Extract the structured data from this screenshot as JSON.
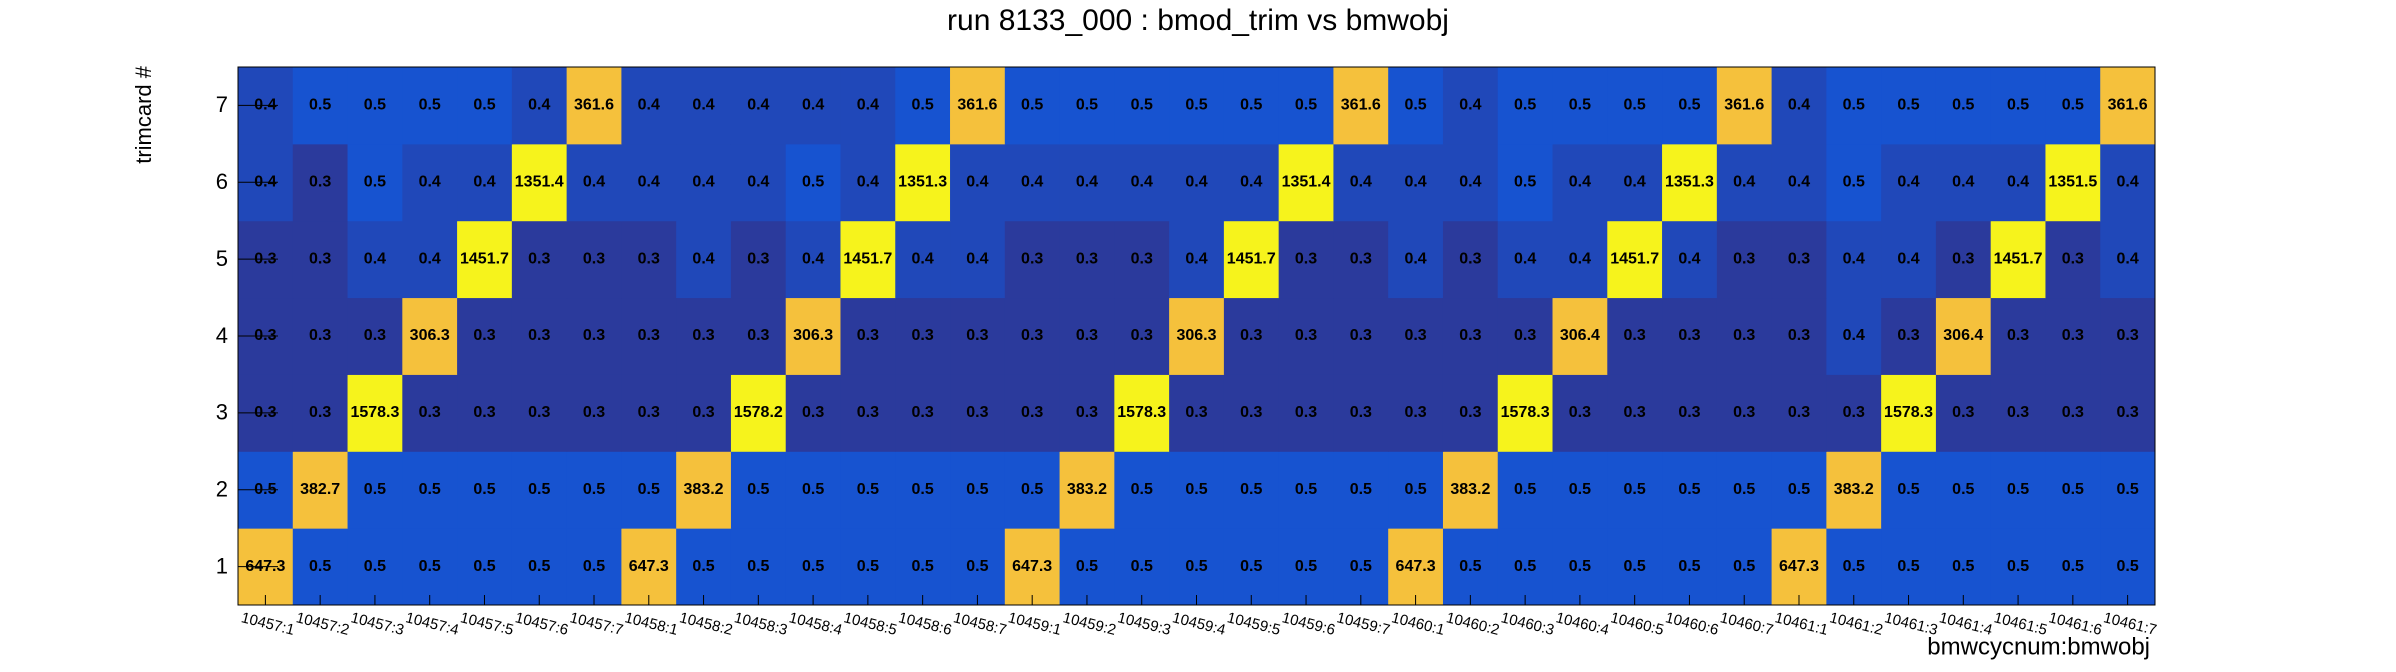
{
  "chart_data": {
    "type": "heatmap",
    "title": "run 8133_000 : bmod_trim vs bmwobj",
    "x_label": "bmwcycnum:bmwobj",
    "y_label": "trimcard #",
    "categories": [
      "10457:1",
      "10457:2",
      "10457:3",
      "10457:4",
      "10457:5",
      "10457:6",
      "10457:7",
      "10458:1",
      "10458:2",
      "10458:3",
      "10458:4",
      "10458:5",
      "10458:6",
      "10458:7",
      "10459:1",
      "10459:2",
      "10459:3",
      "10459:4",
      "10459:5",
      "10459:6",
      "10459:7",
      "10460:1",
      "10460:2",
      "10460:3",
      "10460:4",
      "10460:5",
      "10460:6",
      "10460:7",
      "10461:1",
      "10461:2",
      "10461:3",
      "10461:4",
      "10461:5",
      "10461:6",
      "10461:7"
    ],
    "y": [
      1,
      2,
      3,
      4,
      5,
      6,
      7
    ],
    "ylim": [
      0.5,
      7.5
    ],
    "yticks": [
      1,
      2,
      3,
      4,
      5,
      6,
      7
    ],
    "log_color": true,
    "colors": [
      "#2b3a9c",
      "#1753d0",
      "#f5c13c",
      "#f6f31c"
    ],
    "z": [
      [
        647.3,
        0.5,
        0.5,
        0.5,
        0.5,
        0.5,
        0.5,
        647.3,
        0.5,
        0.5,
        0.5,
        0.5,
        0.5,
        0.5,
        647.3,
        0.5,
        0.5,
        0.5,
        0.5,
        0.5,
        0.5,
        647.3,
        0.5,
        0.5,
        0.5,
        0.5,
        0.5,
        0.5,
        647.3,
        0.5,
        0.5,
        0.5,
        0.5,
        0.5,
        0.5
      ],
      [
        0.5,
        382.7,
        0.5,
        0.5,
        0.5,
        0.5,
        0.5,
        0.5,
        383.2,
        0.5,
        0.5,
        0.5,
        0.5,
        0.5,
        0.5,
        383.2,
        0.5,
        0.5,
        0.5,
        0.5,
        0.5,
        0.5,
        383.2,
        0.5,
        0.5,
        0.5,
        0.5,
        0.5,
        0.5,
        383.2,
        0.5,
        0.5,
        0.5,
        0.5,
        0.5
      ],
      [
        0.3,
        0.3,
        1578.3,
        0.3,
        0.3,
        0.3,
        0.3,
        0.3,
        0.3,
        1578.2,
        0.3,
        0.3,
        0.3,
        0.3,
        0.3,
        0.3,
        1578.3,
        0.3,
        0.3,
        0.3,
        0.3,
        0.3,
        0.3,
        1578.3,
        0.3,
        0.3,
        0.3,
        0.3,
        0.3,
        0.3,
        1578.3,
        0.3,
        0.3,
        0.3,
        0.3
      ],
      [
        0.3,
        0.3,
        0.3,
        306.3,
        0.3,
        0.3,
        0.3,
        0.3,
        0.3,
        0.3,
        306.3,
        0.3,
        0.3,
        0.3,
        0.3,
        0.3,
        0.3,
        306.3,
        0.3,
        0.3,
        0.3,
        0.3,
        0.3,
        0.3,
        306.4,
        0.3,
        0.3,
        0.3,
        0.3,
        0.4,
        0.3,
        306.4,
        0.3,
        0.3,
        0.3
      ],
      [
        0.3,
        0.3,
        0.4,
        0.4,
        1451.7,
        0.3,
        0.3,
        0.3,
        0.4,
        0.3,
        0.4,
        1451.7,
        0.4,
        0.4,
        0.3,
        0.3,
        0.3,
        0.4,
        1451.7,
        0.3,
        0.3,
        0.4,
        0.3,
        0.4,
        0.4,
        1451.7,
        0.4,
        0.3,
        0.3,
        0.4,
        0.4,
        0.3,
        1451.7,
        0.3,
        0.4
      ],
      [
        0.4,
        0.3,
        0.5,
        0.4,
        0.4,
        1351.4,
        0.4,
        0.4,
        0.4,
        0.4,
        0.5,
        0.4,
        1351.3,
        0.4,
        0.4,
        0.4,
        0.4,
        0.4,
        0.4,
        1351.4,
        0.4,
        0.4,
        0.4,
        0.5,
        0.4,
        0.4,
        1351.3,
        0.4,
        0.4,
        0.5,
        0.4,
        0.4,
        0.4,
        1351.5,
        0.4
      ],
      [
        0.4,
        0.5,
        0.5,
        0.5,
        0.5,
        0.4,
        361.6,
        0.4,
        0.4,
        0.4,
        0.4,
        0.4,
        0.5,
        361.6,
        0.5,
        0.5,
        0.5,
        0.5,
        0.5,
        0.5,
        361.6,
        0.5,
        0.4,
        0.5,
        0.5,
        0.5,
        0.5,
        361.6,
        0.4,
        0.5,
        0.5,
        0.5,
        0.5,
        0.5,
        361.6
      ]
    ]
  }
}
